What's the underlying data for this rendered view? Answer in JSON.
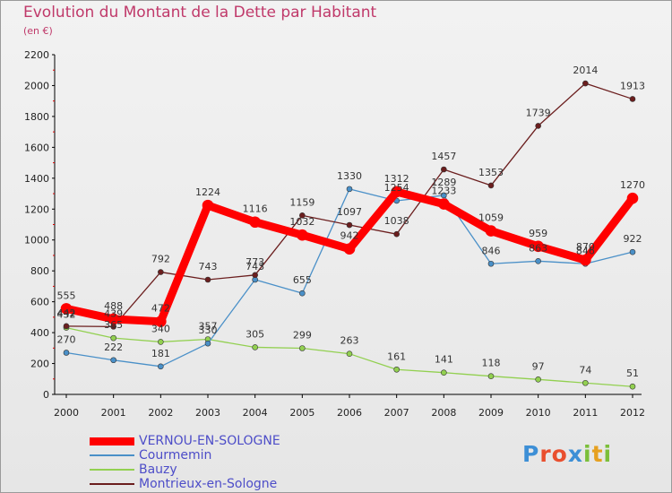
{
  "title": "Evolution du Montant de la Dette par Habitant",
  "unit": "(en €)",
  "logo": {
    "text": "Proxiti",
    "colors": [
      "#3d8fd6",
      "#e94f2e",
      "#e94f2e",
      "#3d8fd6",
      "#7bbf3a",
      "#e6a020",
      "#7bbf3a"
    ]
  },
  "chart_data": {
    "type": "line",
    "x": [
      "2000",
      "2001",
      "2002",
      "2003",
      "2004",
      "2005",
      "2006",
      "2007",
      "2008",
      "2009",
      "2010",
      "2011",
      "2012"
    ],
    "ylim": [
      0,
      2200
    ],
    "yticks": [
      0,
      200,
      400,
      600,
      800,
      1000,
      1200,
      1400,
      1600,
      1800,
      2000,
      2200
    ],
    "grid": false,
    "legend_position": "bottom-left",
    "series": [
      {
        "name": "VERNOU-EN-SOLOGNE",
        "color": "#ff0000",
        "values": [
          555,
          488,
          472,
          1224,
          1116,
          1032,
          942,
          1312,
          1233,
          1059,
          959,
          870,
          1270
        ]
      },
      {
        "name": "Courmemin",
        "color": "#4a90c8",
        "values": [
          270,
          222,
          181,
          330,
          743,
          655,
          1330,
          1254,
          1289,
          846,
          863,
          846,
          922
        ]
      },
      {
        "name": "Bauzy",
        "color": "#92d050",
        "values": [
          432,
          365,
          340,
          357,
          305,
          299,
          263,
          161,
          141,
          118,
          97,
          74,
          51
        ]
      },
      {
        "name": "Montrieux-en-Sologne",
        "color": "#6b1e1e",
        "values": [
          442,
          439,
          792,
          743,
          773,
          1159,
          1097,
          1038,
          1457,
          1353,
          1739,
          2014,
          1913
        ]
      }
    ]
  }
}
